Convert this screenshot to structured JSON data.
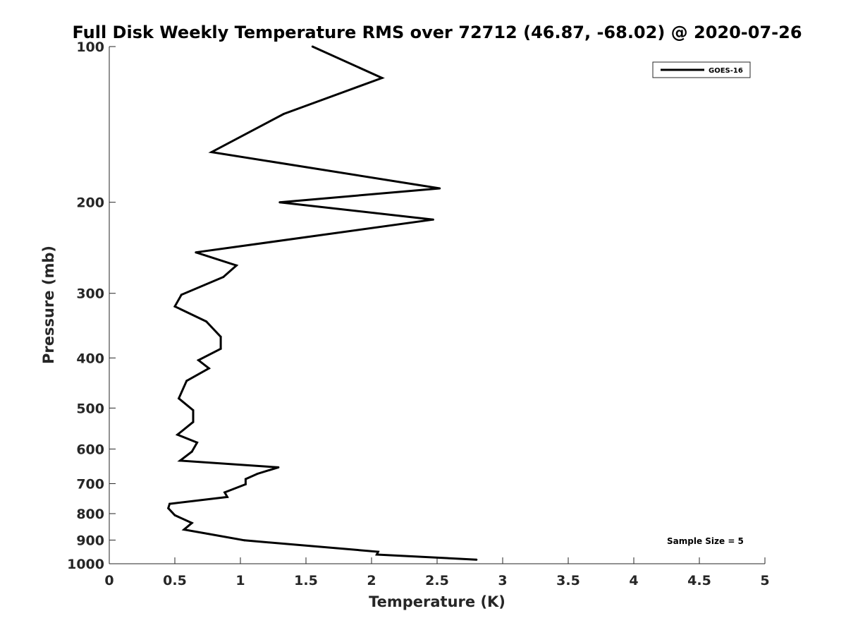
{
  "chart_data": {
    "type": "line",
    "title": "Full Disk Weekly Temperature RMS over 72712 (46.87, -68.02) @ 2020-07-26",
    "xlabel": "Temperature (K)",
    "ylabel": "Pressure (mb)",
    "xlim": [
      0,
      5
    ],
    "ylim": [
      1000,
      100
    ],
    "y_scale": "log",
    "y_reversed": true,
    "x_ticks": [
      "0",
      "0.5",
      "1",
      "1.5",
      "2",
      "2.5",
      "3",
      "3.5",
      "4",
      "4.5",
      "5"
    ],
    "x_tick_values": [
      0,
      0.5,
      1,
      1.5,
      2,
      2.5,
      3,
      3.5,
      4,
      4.5,
      5
    ],
    "y_ticks": [
      "100",
      "200",
      "300",
      "400",
      "500",
      "600",
      "700",
      "800",
      "900",
      "1000"
    ],
    "y_tick_values": [
      100,
      200,
      300,
      400,
      500,
      600,
      700,
      800,
      900,
      1000
    ],
    "grid": false,
    "legend_position": "top-right",
    "annotation": "Sample Size = 5",
    "series": [
      {
        "name": "GOES-16",
        "color": "#000000",
        "x": [
          1.55,
          2.08,
          1.33,
          0.78,
          2.52,
          1.3,
          2.47,
          0.66,
          0.97,
          0.87,
          0.55,
          0.5,
          0.74,
          0.85,
          0.85,
          0.68,
          0.76,
          0.59,
          0.53,
          0.64,
          0.64,
          0.52,
          0.67,
          0.63,
          0.54,
          1.29,
          1.13,
          1.04,
          1.04,
          0.88,
          0.9,
          0.46,
          0.45,
          0.5,
          0.63,
          0.57,
          0.75,
          1.03,
          2.05,
          2.04,
          2.8
        ],
        "y": [
          100,
          115,
          135,
          160,
          188,
          200,
          216,
          250,
          265,
          279,
          302,
          318,
          340,
          364,
          384,
          404,
          419,
          443,
          479,
          505,
          532,
          563,
          583,
          607,
          632,
          651,
          670,
          686,
          702,
          728,
          743,
          766,
          781,
          806,
          834,
          859,
          875,
          901,
          948,
          960,
          982
        ]
      }
    ]
  }
}
